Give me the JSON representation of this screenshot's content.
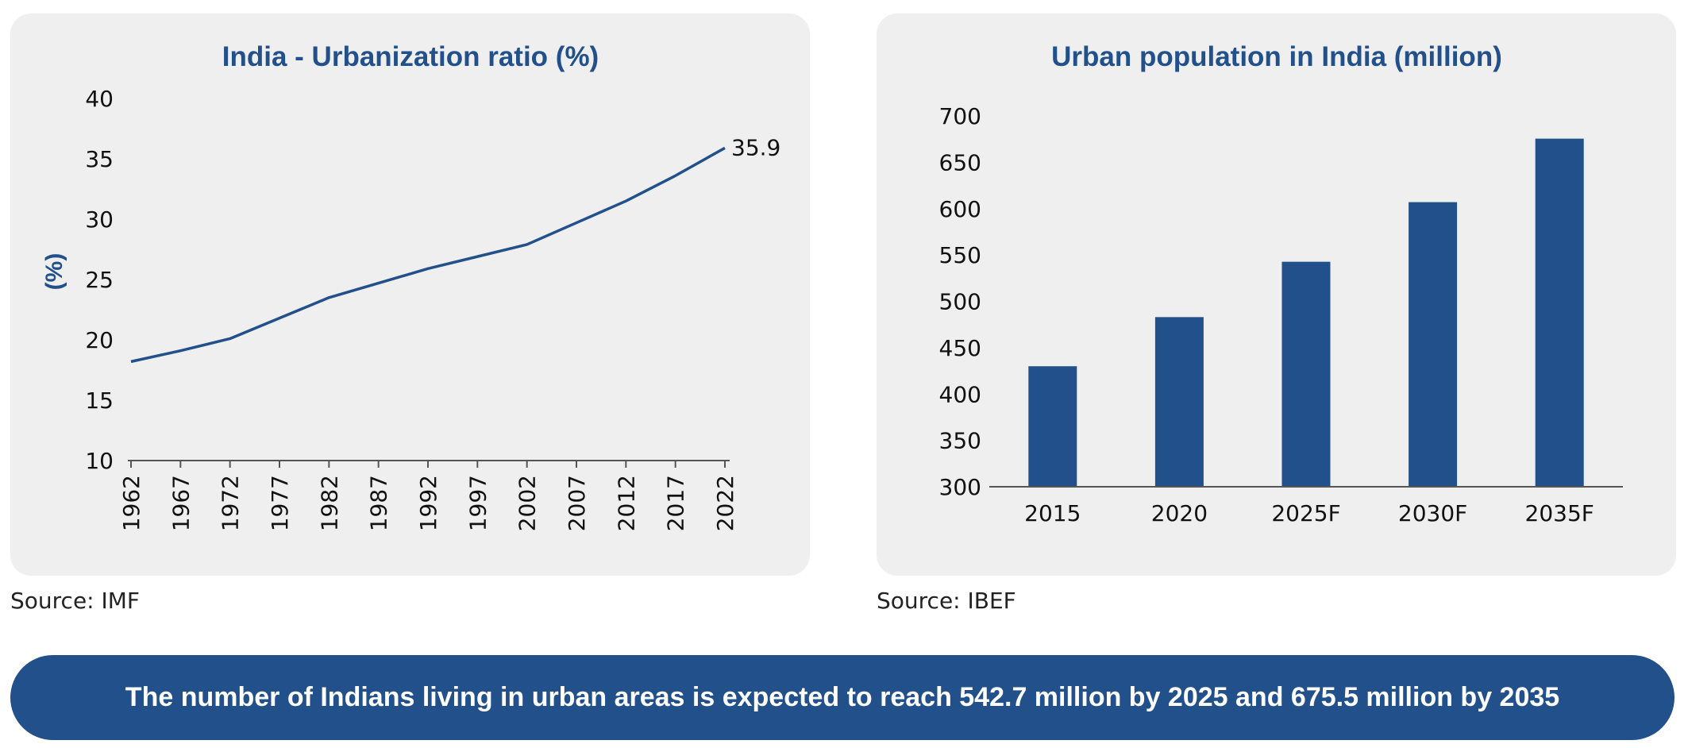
{
  "chart_data": [
    {
      "type": "line",
      "title": "India - Urbanization ratio (%)",
      "ylabel": "(%)",
      "xlabel": "",
      "x": [
        1962,
        1967,
        1972,
        1977,
        1982,
        1987,
        1992,
        1997,
        2002,
        2007,
        2012,
        2017,
        2022
      ],
      "y": [
        18.2,
        19.1,
        20.1,
        21.8,
        23.5,
        24.7,
        25.9,
        26.9,
        27.9,
        29.7,
        31.5,
        33.6,
        35.9
      ],
      "ylim": [
        10,
        40
      ],
      "yticks": [
        10,
        15,
        20,
        25,
        30,
        35,
        40
      ],
      "end_label": "35.9",
      "color": "#22508a",
      "grid": false,
      "source": "Source: IMF"
    },
    {
      "type": "bar",
      "title": "Urban population in India (million)",
      "xlabel": "",
      "ylabel": "",
      "categories": [
        "2015",
        "2020",
        "2025F",
        "2030F",
        "2035F"
      ],
      "values": [
        430,
        483,
        542.7,
        607,
        675.5
      ],
      "ylim": [
        300,
        700
      ],
      "yticks": [
        300,
        350,
        400,
        450,
        500,
        550,
        600,
        650,
        700
      ],
      "color": "#22508a",
      "grid": false,
      "source": "Source: IBEF"
    }
  ],
  "banner": {
    "text": "The number of Indians living in urban areas is expected to reach 542.7 million by 2025 and 675.5 million by 2035"
  }
}
